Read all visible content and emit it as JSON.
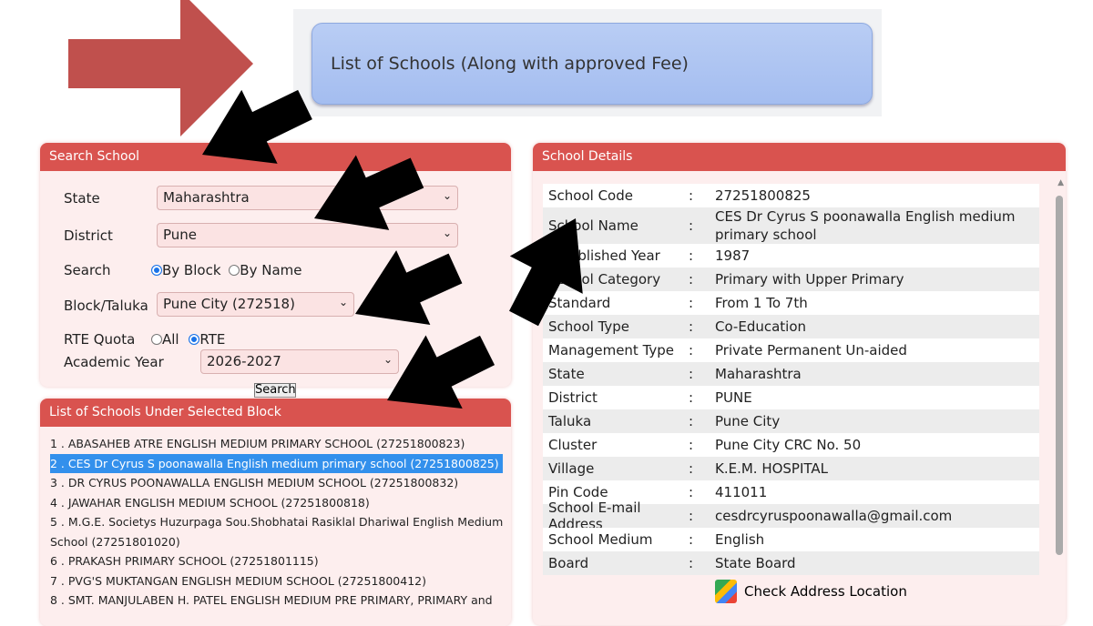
{
  "banner": {
    "title": "List of Schools (Along with approved Fee)"
  },
  "search_panel": {
    "title": "Search School",
    "state_label": "State",
    "state_value": "Maharashtra",
    "district_label": "District",
    "district_value": "Pune",
    "search_label": "Search",
    "by_block": "By Block",
    "by_name": "By Name",
    "search_by_selected": "By Block",
    "block_label": "Block/Taluka",
    "block_value": "Pune City (272518)",
    "rte_label": "RTE Quota",
    "rte_all": "All",
    "rte_rte": "RTE",
    "rte_selected": "RTE",
    "year_label": "Academic Year",
    "year_value": "2026-2027",
    "search_button": "Search"
  },
  "school_list": {
    "title": "List of Schools Under Selected Block",
    "items": [
      "1 . ABASAHEB ATRE ENGLISH MEDIUM PRIMARY SCHOOL (27251800823)",
      "2 . CES Dr Cyrus S poonawalla English medium primary school (27251800825)",
      "3 . DR CYRUS POONAWALLA ENGLISH MEDIUM SCHOOL (27251800832)",
      "4 . JAWAHAR ENGLISH MEDIUM SCHOOL (27251800818)",
      "5 . M.G.E. Societys Huzurpaga Sou.Shobhatai Rasiklal Dhariwal English Medium School (27251801020)",
      "6 . PRAKASH PRIMARY SCHOOL (27251801115)",
      "7 . PVG'S MUKTANGAN ENGLISH MEDIUM SCHOOL (27251800412)",
      "8 . SMT. MANJULABEN H. PATEL ENGLISH MEDIUM PRE PRIMARY, PRIMARY and"
    ],
    "selected_index": 1
  },
  "details": {
    "title": "School Details",
    "separator": ":",
    "rows": [
      {
        "label": "School Code",
        "value": "27251800825"
      },
      {
        "label": "School Name",
        "value": "CES Dr Cyrus S poonawalla English medium primary school"
      },
      {
        "label": "Established Year",
        "value": "1987"
      },
      {
        "label": "School Category",
        "value": "Primary with Upper Primary"
      },
      {
        "label": "Standard",
        "value": "From 1 To 7th"
      },
      {
        "label": "School Type",
        "value": "Co-Education"
      },
      {
        "label": "Management Type",
        "value": "Private Permanent Un-aided"
      },
      {
        "label": "State",
        "value": "Maharashtra"
      },
      {
        "label": "District",
        "value": "PUNE"
      },
      {
        "label": "Taluka",
        "value": "Pune City"
      },
      {
        "label": "Cluster",
        "value": "Pune City CRC No. 50"
      },
      {
        "label": "Village",
        "value": "K.E.M. HOSPITAL"
      },
      {
        "label": "Pin Code",
        "value": "411011"
      },
      {
        "label": "School E-mail Address",
        "value": "cesdrcyruspoonawalla@gmail.com"
      },
      {
        "label": "School Medium",
        "value": "English"
      },
      {
        "label": "Board",
        "value": "State Board"
      }
    ],
    "map_link": "Check Address Location",
    "map_icon": "google-maps-icon"
  },
  "colors": {
    "panel_header": "#d9534f",
    "highlight": "#3390ec",
    "banner_button": "#a4bdf0",
    "red_arrow": "#c0504d",
    "black_arrow": "#000000"
  }
}
